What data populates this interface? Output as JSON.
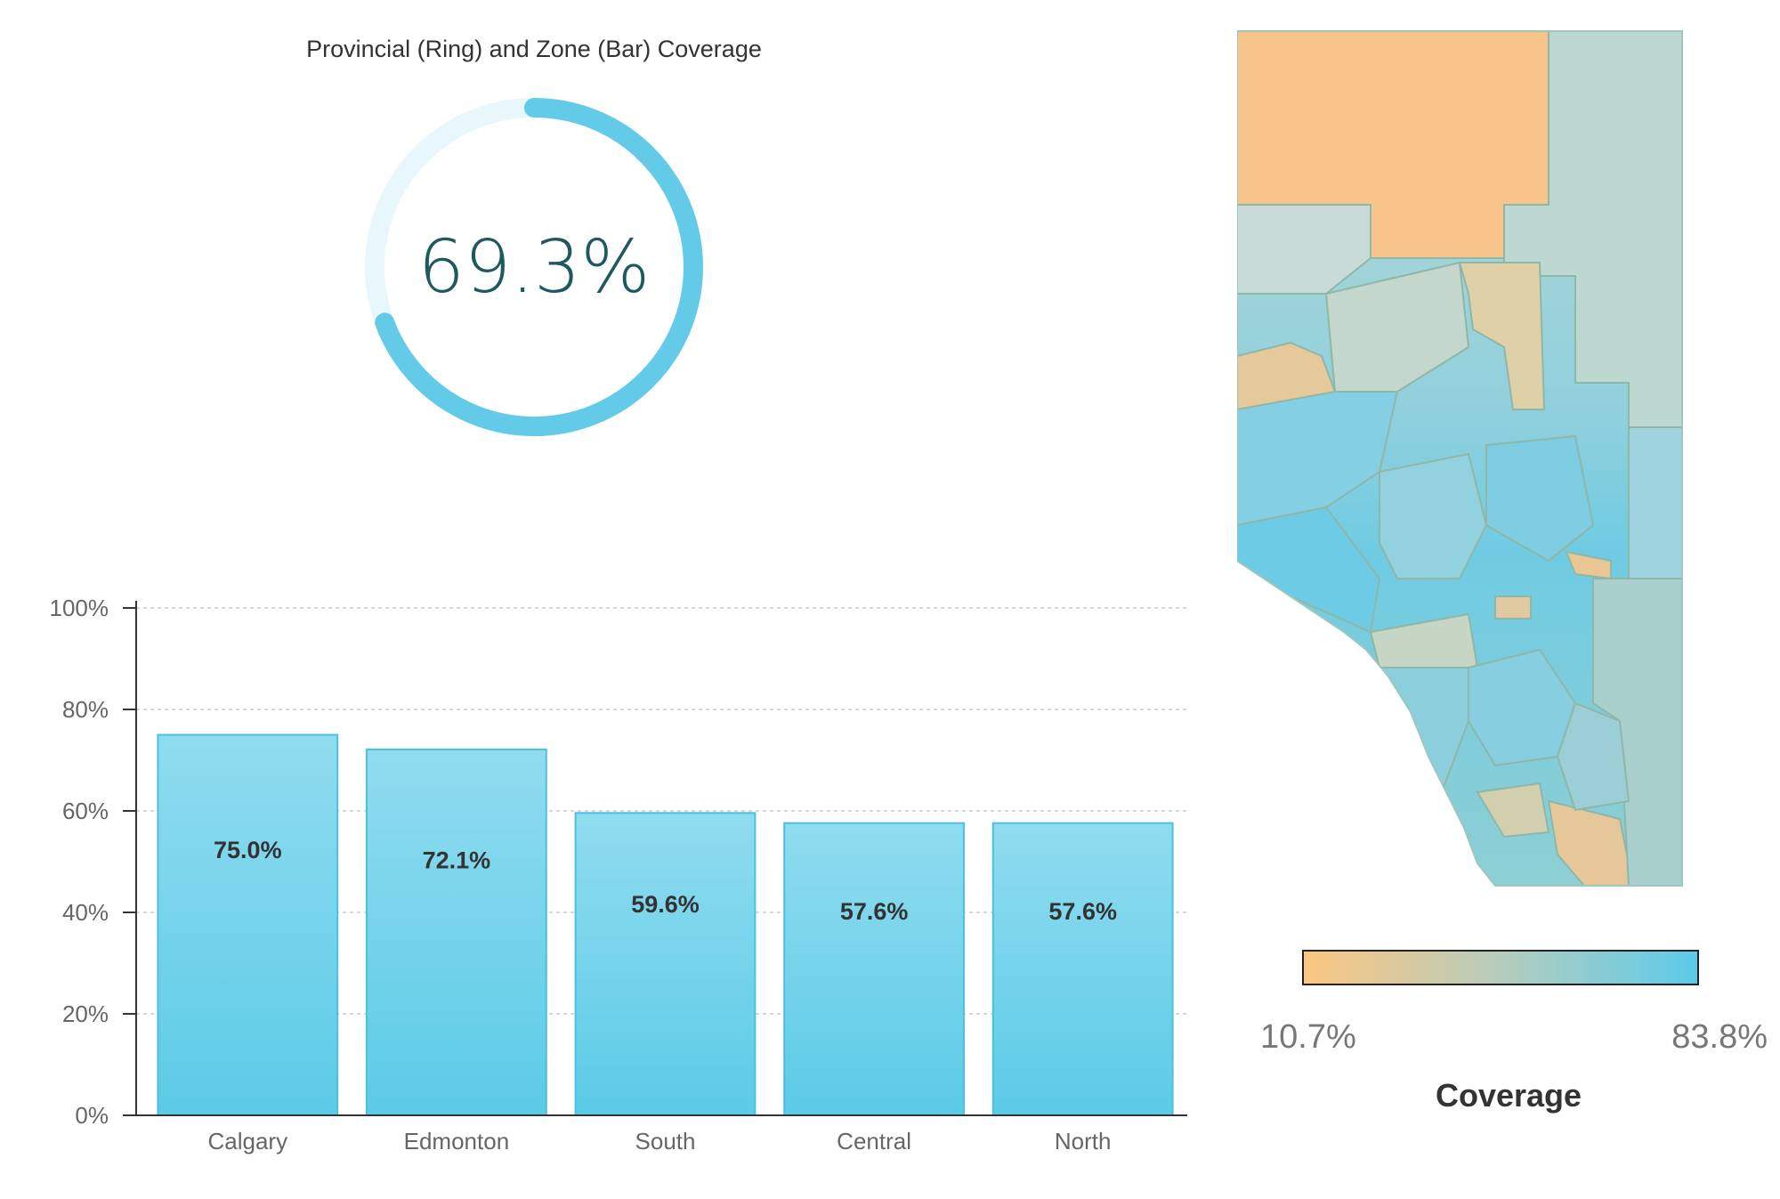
{
  "title": "Provincial (Ring) and Zone (Bar) Coverage",
  "ring": {
    "value": 69.3,
    "label": "69.3%",
    "color": "#63cbe8"
  },
  "chart_data": {
    "type": "bar",
    "title": "Provincial (Ring) and Zone (Bar) Coverage",
    "categories": [
      "Calgary",
      "Edmonton",
      "South",
      "Central",
      "North"
    ],
    "values": [
      75.0,
      72.1,
      59.6,
      57.6,
      57.6
    ],
    "value_labels": [
      "75.0%",
      "72.1%",
      "59.6%",
      "57.6%",
      "57.6%"
    ],
    "ylim": [
      0,
      100
    ],
    "yticks": [
      "0%",
      "20%",
      "40%",
      "60%",
      "80%",
      "100%"
    ],
    "xlabel": "",
    "ylabel": "",
    "grid": true,
    "bar_color_top": "#90dcef",
    "bar_color_bottom": "#5ccbe7"
  },
  "legend": {
    "title": "Coverage",
    "min_label": "10.7%",
    "max_label": "83.8%",
    "color_min": "#fcc681",
    "color_mid": "#b6ccbd",
    "color_max": "#5bcbeb"
  }
}
